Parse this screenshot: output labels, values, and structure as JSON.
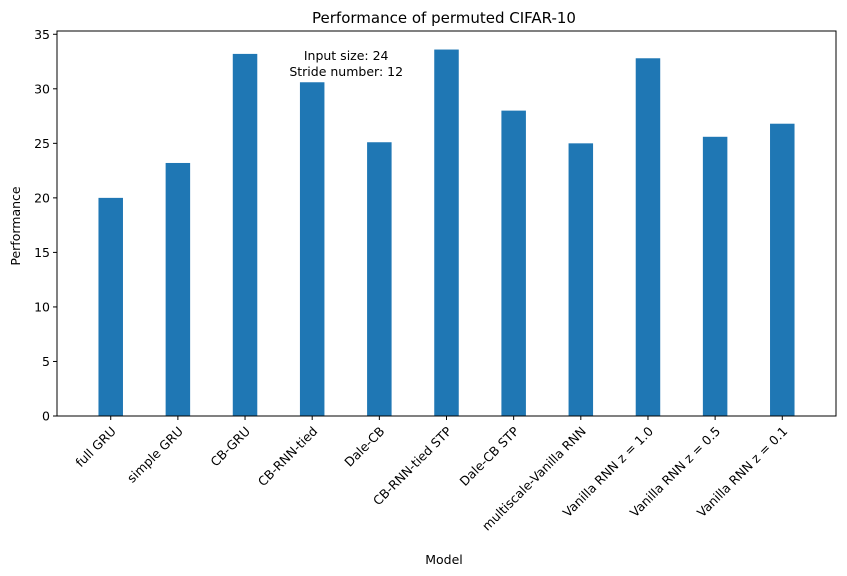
{
  "chart_data": {
    "type": "bar",
    "title": "Performance of permuted CIFAR-10",
    "xlabel": "Model",
    "ylabel": "Performance",
    "categories": [
      "full GRU",
      "simple GRU",
      "CB-GRU",
      "CB-RNN-tied",
      "Dale-CB",
      "CB-RNN-tied STP",
      "Dale-CB STP",
      "multiscale-Vanilla RNN",
      "Vanilla RNN z = 1.0",
      "Vanilla RNN z = 0.5",
      "Vanilla RNN z = 0.1"
    ],
    "values": [
      20.0,
      23.2,
      33.2,
      30.6,
      25.1,
      33.6,
      28.0,
      25.0,
      32.8,
      25.6,
      26.8
    ],
    "ylim": [
      0,
      35.3
    ],
    "yticks": [
      0,
      5,
      10,
      15,
      20,
      25,
      30,
      35
    ],
    "annotation": [
      "Input size: 24",
      "Stride number: 12"
    ],
    "bar_color": "#1f77b4",
    "grid": false,
    "legend": "none"
  }
}
